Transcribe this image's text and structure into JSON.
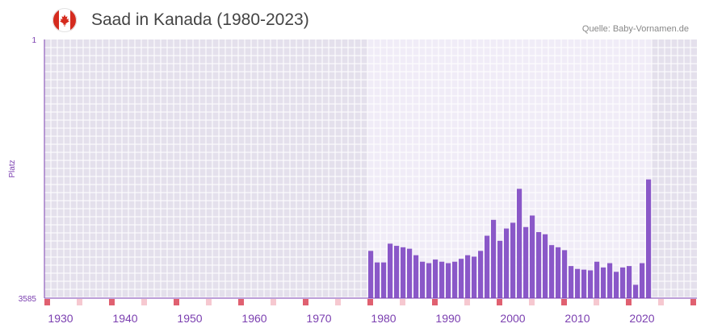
{
  "header": {
    "title": "Saad in Kanada (1980-2023)",
    "source": "Quelle: Baby-Vornamen.de",
    "flag_icon": "canada-flag-icon"
  },
  "colors": {
    "bar": "#8a58c8",
    "axis": "#7b3fb0",
    "bg_outside": "#e4e0ec",
    "bg_inside": "#f0ecf7",
    "grid": "#ffffff",
    "decade_marker": "#e06070",
    "minor_marker": "#f6c8d0"
  },
  "chart_data": {
    "type": "bar",
    "title": "Saad in Kanada (1980-2023)",
    "ylabel": "Platz",
    "xlabel": "",
    "ylim": [
      1,
      3585
    ],
    "y_inverted": true,
    "y_ticks": [
      "1",
      "3585"
    ],
    "x_range": [
      1928,
      2029
    ],
    "x_ticks": [
      "1930",
      "1940",
      "1950",
      "1960",
      "1970",
      "1980",
      "1990",
      "2000",
      "2010",
      "2020"
    ],
    "highlight_range": [
      1978,
      2022
    ],
    "years": [
      1978,
      1979,
      1980,
      1981,
      1982,
      1983,
      1984,
      1985,
      1986,
      1987,
      1988,
      1989,
      1990,
      1991,
      1992,
      1993,
      1994,
      1995,
      1996,
      1997,
      1998,
      1999,
      2000,
      2001,
      2002,
      2003,
      2004,
      2005,
      2006,
      2007,
      2008,
      2009,
      2010,
      2011,
      2012,
      2013,
      2014,
      2015,
      2016,
      2017,
      2018,
      2019,
      2020,
      2021
    ],
    "values": [
      2930,
      3090,
      3090,
      2830,
      2860,
      2880,
      2900,
      2990,
      3080,
      3100,
      3050,
      3080,
      3100,
      3080,
      3040,
      2990,
      3010,
      2930,
      2720,
      2500,
      2790,
      2620,
      2540,
      2070,
      2600,
      2440,
      2670,
      2700,
      2850,
      2880,
      2920,
      3140,
      3180,
      3190,
      3200,
      3080,
      3160,
      3100,
      3220,
      3160,
      3140,
      3400,
      3100,
      1940
    ]
  }
}
